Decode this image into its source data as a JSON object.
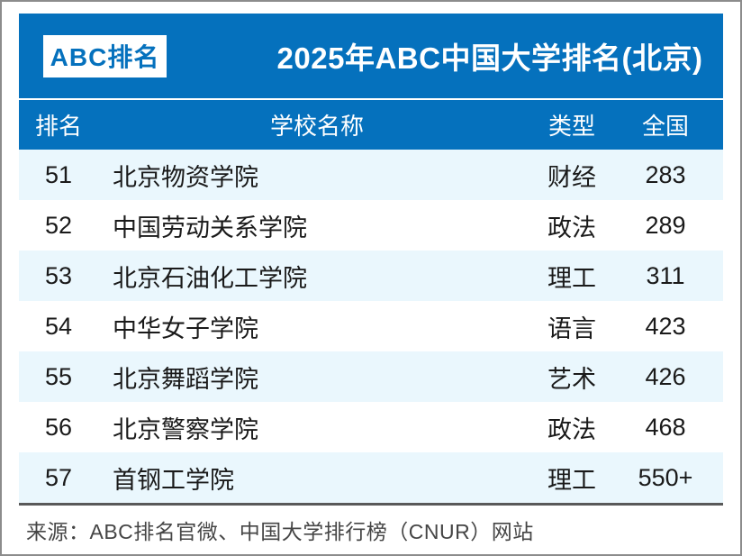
{
  "brand": {
    "badge_label": "ABC排名"
  },
  "header": {
    "title": "2025年ABC中国大学排名(北京)"
  },
  "table": {
    "columns": [
      {
        "key": "rank",
        "label": "排名"
      },
      {
        "key": "school",
        "label": "学校名称"
      },
      {
        "key": "type",
        "label": "类型"
      },
      {
        "key": "national",
        "label": "全国"
      }
    ],
    "rows": [
      {
        "rank": "51",
        "school": "北京物资学院",
        "type": "财经",
        "national": "283"
      },
      {
        "rank": "52",
        "school": "中国劳动关系学院",
        "type": "政法",
        "national": "289"
      },
      {
        "rank": "53",
        "school": "北京石油化工学院",
        "type": "理工",
        "national": "311"
      },
      {
        "rank": "54",
        "school": "中华女子学院",
        "type": "语言",
        "national": "423"
      },
      {
        "rank": "55",
        "school": "北京舞蹈学院",
        "type": "艺术",
        "national": "426"
      },
      {
        "rank": "56",
        "school": "北京警察学院",
        "type": "政法",
        "national": "468"
      },
      {
        "rank": "57",
        "school": "首钢工学院",
        "type": "理工",
        "national": "550+"
      }
    ]
  },
  "footer": {
    "source": "来源：ABC排名官微、中国大学排行榜（CNUR）网站"
  },
  "colors": {
    "primary_blue": "#0571BD",
    "row_alt_blue": "#EAF7FD",
    "divider_dark": "#595959",
    "frame_gray": "#8C8C8C",
    "badge_bg": "#FFFFFF",
    "text_dark": "#1A1A1A"
  }
}
